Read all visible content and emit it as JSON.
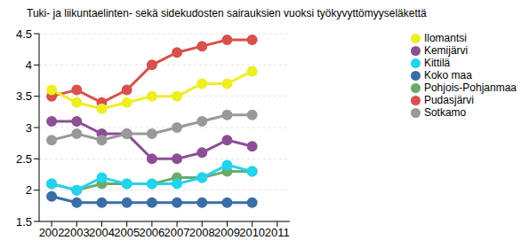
{
  "chart_data": {
    "type": "line",
    "title": "Tuki- ja liikuntaelinten- sekä sidekudosten sairauksien vuoksi työkyvyttömyyseläkettä",
    "x": [
      2002,
      2003,
      2004,
      2005,
      2006,
      2007,
      2008,
      2009,
      2010
    ],
    "xlim": [
      2001.5,
      2011.5
    ],
    "xticks": [
      2002,
      2003,
      2004,
      2005,
      2006,
      2007,
      2008,
      2009,
      2010,
      2011
    ],
    "ylim": [
      1.5,
      4.5
    ],
    "yticks": [
      1.5,
      2,
      2.5,
      3,
      3.5,
      4,
      4.5
    ],
    "grid": true,
    "legend": "right",
    "marker": "circle",
    "series": [
      {
        "name": "Pudasjärvi",
        "color": "#d9504c",
        "values": [
          3.5,
          3.6,
          3.4,
          3.6,
          4.0,
          4.2,
          4.3,
          4.4,
          4.4
        ]
      },
      {
        "name": "Pohjois-Pohjanmaa",
        "color": "#6aab6a",
        "values": [
          2.1,
          2.0,
          2.1,
          2.1,
          2.1,
          2.2,
          2.2,
          2.3,
          2.3
        ]
      },
      {
        "name": "Koko maa",
        "color": "#3a6ea5",
        "values": [
          1.9,
          1.8,
          1.8,
          1.8,
          1.8,
          1.8,
          1.8,
          1.8,
          1.8
        ]
      },
      {
        "name": "Kittilä",
        "color": "#22d4ee",
        "values": [
          2.1,
          2.0,
          2.2,
          2.1,
          2.1,
          2.1,
          2.2,
          2.4,
          2.3
        ]
      },
      {
        "name": "Ilomantsi",
        "color": "#eeee22",
        "values": [
          3.6,
          3.4,
          3.3,
          3.4,
          3.5,
          3.5,
          3.7,
          3.7,
          3.9
        ]
      },
      {
        "name": "Kemijärvi",
        "color": "#8c4f96",
        "values": [
          3.1,
          3.1,
          2.9,
          2.9,
          2.5,
          2.5,
          2.6,
          2.8,
          2.7
        ]
      },
      {
        "name": "Sotkamo",
        "color": "#999999",
        "values": [
          2.8,
          2.9,
          2.8,
          2.9,
          2.9,
          3.0,
          3.1,
          3.2,
          3.2
        ]
      }
    ]
  }
}
